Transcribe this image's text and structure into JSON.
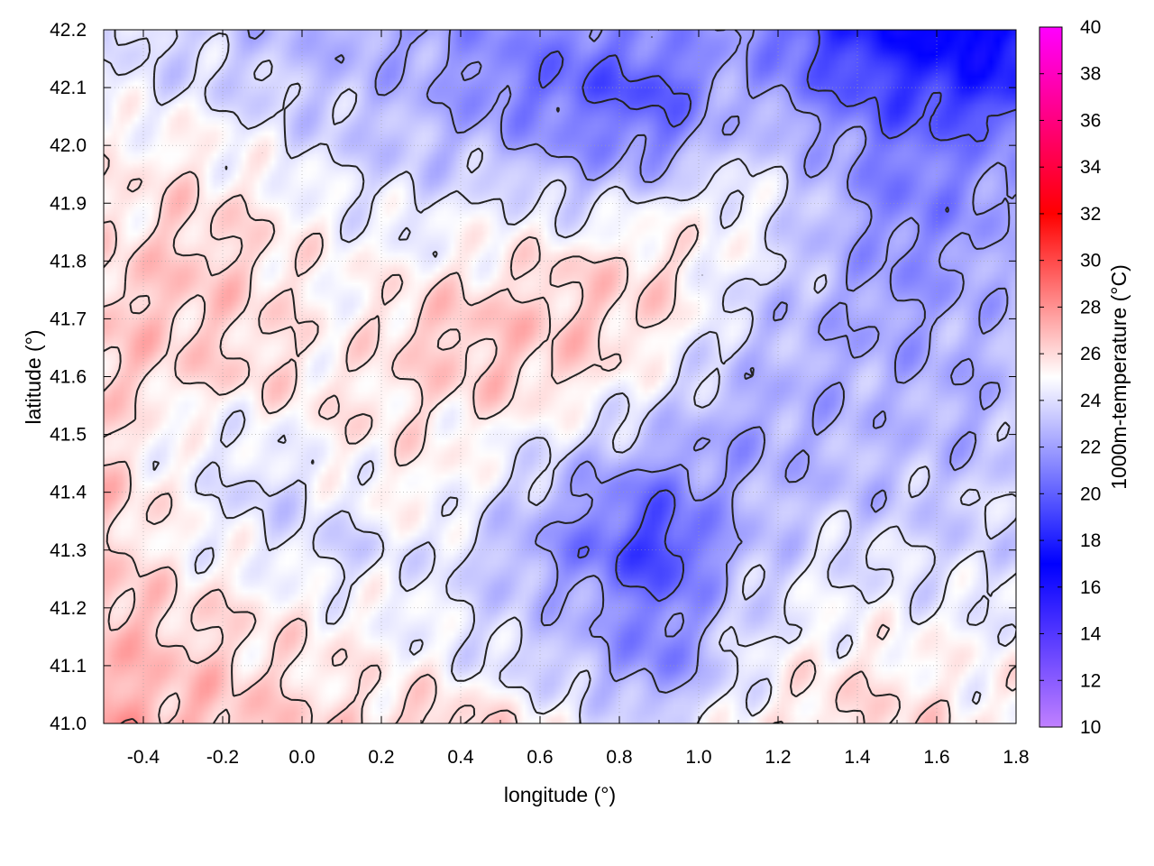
{
  "chart_data": {
    "type": "heatmap",
    "title": "",
    "xlabel": "longitude (°)",
    "ylabel": "latitude (°)",
    "colorbar_label": "1000m-temperature (°C)",
    "xlim": [
      -0.5,
      1.8
    ],
    "ylim": [
      41.0,
      42.2
    ],
    "x_ticks": [
      "-0.4",
      "-0.2",
      "0.0",
      "0.2",
      "0.4",
      "0.6",
      "0.8",
      "1.0",
      "1.2",
      "1.4",
      "1.6",
      "1.8"
    ],
    "y_ticks": [
      "41.0",
      "41.1",
      "41.2",
      "41.3",
      "41.4",
      "41.5",
      "41.6",
      "41.7",
      "41.8",
      "41.9",
      "42.0",
      "42.1",
      "42.2"
    ],
    "colorbar_range": [
      10,
      40
    ],
    "colorbar_ticks": [
      "10",
      "12",
      "14",
      "16",
      "18",
      "20",
      "22",
      "24",
      "26",
      "28",
      "30",
      "32",
      "34",
      "36",
      "38",
      "40"
    ],
    "colormap": [
      {
        "value": 10,
        "color": "#c080ff"
      },
      {
        "value": 17,
        "color": "#0000ff"
      },
      {
        "value": 25,
        "color": "#ffffff"
      },
      {
        "value": 32,
        "color": "#ff0000"
      },
      {
        "value": 40,
        "color": "#ff00ff"
      }
    ],
    "contour_levels": [
      20,
      22,
      24,
      26,
      28
    ],
    "contour_color": "#222222",
    "grid": true,
    "field_samples": {
      "x": [
        -0.5,
        -0.3,
        -0.1,
        0.1,
        0.3,
        0.5,
        0.7,
        0.9,
        1.1,
        1.3,
        1.5,
        1.7,
        1.8
      ],
      "y": [
        41.0,
        41.1,
        41.2,
        41.3,
        41.4,
        41.5,
        41.6,
        41.7,
        41.8,
        41.9,
        42.0,
        42.1,
        42.2
      ],
      "values": [
        [
          27.5,
          27.0,
          26.5,
          26.0,
          26.5,
          26.0,
          24.5,
          23.5,
          25.0,
          26.0,
          26.0,
          25.5,
          25.0
        ],
        [
          27.0,
          26.5,
          26.0,
          25.5,
          25.0,
          24.0,
          23.0,
          21.0,
          24.0,
          25.5,
          25.5,
          25.0,
          25.0
        ],
        [
          27.0,
          26.0,
          25.5,
          25.0,
          24.5,
          23.5,
          22.5,
          20.5,
          23.5,
          24.5,
          24.5,
          24.5,
          24.5
        ],
        [
          26.5,
          25.0,
          24.5,
          23.5,
          24.5,
          23.0,
          21.0,
          18.5,
          22.5,
          24.0,
          24.0,
          23.5,
          24.0
        ],
        [
          26.5,
          25.0,
          23.5,
          24.5,
          25.5,
          24.0,
          22.0,
          20.5,
          22.5,
          23.0,
          23.0,
          23.5,
          24.0
        ],
        [
          26.0,
          24.5,
          24.5,
          25.5,
          25.5,
          25.0,
          24.0,
          23.0,
          22.0,
          22.5,
          23.0,
          22.5,
          23.0
        ],
        [
          26.5,
          26.0,
          26.0,
          25.5,
          26.0,
          26.5,
          26.0,
          24.5,
          23.0,
          22.5,
          22.5,
          22.5,
          23.0
        ],
        [
          26.5,
          26.5,
          26.0,
          25.0,
          26.5,
          26.5,
          26.5,
          26.0,
          23.5,
          22.5,
          22.0,
          22.5,
          23.0
        ],
        [
          26.0,
          26.5,
          26.0,
          25.0,
          25.0,
          25.5,
          26.0,
          26.0,
          24.5,
          23.0,
          21.5,
          22.0,
          23.0
        ],
        [
          25.5,
          26.0,
          25.5,
          24.5,
          24.0,
          24.5,
          23.5,
          24.5,
          25.0,
          23.0,
          21.0,
          21.5,
          22.5
        ],
        [
          25.0,
          25.5,
          24.5,
          23.5,
          23.0,
          22.5,
          21.5,
          21.0,
          23.5,
          22.5,
          20.5,
          21.0,
          21.5
        ],
        [
          24.5,
          24.0,
          23.5,
          23.0,
          22.5,
          21.0,
          20.0,
          19.5,
          22.5,
          20.5,
          19.0,
          18.0,
          18.5
        ],
        [
          24.0,
          23.5,
          23.0,
          22.5,
          22.0,
          21.5,
          21.0,
          21.5,
          22.0,
          19.0,
          17.0,
          16.5,
          17.0
        ]
      ]
    }
  }
}
